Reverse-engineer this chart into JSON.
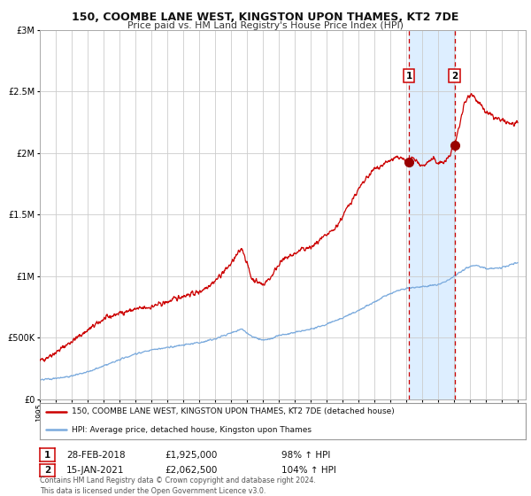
{
  "title": "150, COOMBE LANE WEST, KINGSTON UPON THAMES, KT2 7DE",
  "subtitle": "Price paid vs. HM Land Registry's House Price Index (HPI)",
  "legend_line1": "150, COOMBE LANE WEST, KINGSTON UPON THAMES, KT2 7DE (detached house)",
  "legend_line2": "HPI: Average price, detached house, Kingston upon Thames",
  "annotation1_label": "1",
  "annotation1_date": "28-FEB-2018",
  "annotation1_price": "£1,925,000",
  "annotation1_hpi": "98% ↑ HPI",
  "annotation2_label": "2",
  "annotation2_date": "15-JAN-2021",
  "annotation2_price": "£2,062,500",
  "annotation2_hpi": "104% ↑ HPI",
  "copyright": "Contains HM Land Registry data © Crown copyright and database right 2024.\nThis data is licensed under the Open Government Licence v3.0.",
  "red_line_color": "#cc0000",
  "blue_line_color": "#7aaadd",
  "dot_color": "#990000",
  "shading_color": "#ddeeff",
  "vline_color": "#cc0000",
  "grid_color": "#cccccc",
  "bg_color": "#ffffff",
  "year_start": 1995,
  "year_end": 2025,
  "ylim_max": 3000000,
  "sale1_year": 2018.17,
  "sale1_value": 1925000,
  "sale2_year": 2021.04,
  "sale2_value": 2062500,
  "red_anchors_x": [
    1995.0,
    1996.0,
    1997.0,
    1998.0,
    1999.0,
    2000.0,
    2001.0,
    2002.0,
    2003.0,
    2004.0,
    2005.0,
    2006.0,
    2007.0,
    2007.7,
    2008.3,
    2009.0,
    2009.5,
    2010.0,
    2010.5,
    2011.0,
    2011.5,
    2012.0,
    2012.5,
    2013.0,
    2013.5,
    2014.0,
    2014.5,
    2015.0,
    2015.5,
    2016.0,
    2016.5,
    2017.0,
    2017.5,
    2018.0,
    2018.17,
    2018.5,
    2019.0,
    2019.3,
    2019.7,
    2020.0,
    2020.5,
    2021.04,
    2021.3,
    2021.6,
    2021.9,
    2022.1,
    2022.4,
    2022.7,
    2023.0,
    2023.5,
    2024.0,
    2024.5,
    2025.0
  ],
  "red_anchors_y": [
    310000,
    380000,
    470000,
    560000,
    650000,
    700000,
    730000,
    750000,
    790000,
    840000,
    870000,
    960000,
    1100000,
    1230000,
    980000,
    930000,
    990000,
    1100000,
    1150000,
    1180000,
    1220000,
    1230000,
    1280000,
    1330000,
    1380000,
    1480000,
    1600000,
    1700000,
    1790000,
    1870000,
    1900000,
    1940000,
    1960000,
    1940000,
    1925000,
    1960000,
    1890000,
    1920000,
    1950000,
    1920000,
    1930000,
    2062500,
    2200000,
    2380000,
    2460000,
    2490000,
    2430000,
    2380000,
    2330000,
    2290000,
    2260000,
    2240000,
    2230000
  ],
  "blue_anchors_x": [
    1995.0,
    1996.0,
    1997.0,
    1998.0,
    1999.0,
    2000.0,
    2001.0,
    2002.0,
    2003.0,
    2004.0,
    2005.0,
    2006.0,
    2007.0,
    2007.7,
    2008.3,
    2009.0,
    2009.5,
    2010.0,
    2011.0,
    2012.0,
    2013.0,
    2014.0,
    2015.0,
    2016.0,
    2017.0,
    2017.5,
    2018.0,
    2018.5,
    2019.0,
    2019.5,
    2020.0,
    2020.5,
    2021.0,
    2021.5,
    2022.0,
    2022.5,
    2023.0,
    2023.5,
    2024.0,
    2024.5,
    2025.0
  ],
  "blue_anchors_y": [
    158000,
    170000,
    190000,
    220000,
    270000,
    320000,
    370000,
    400000,
    420000,
    440000,
    460000,
    490000,
    540000,
    570000,
    510000,
    480000,
    490000,
    520000,
    540000,
    570000,
    610000,
    660000,
    720000,
    790000,
    860000,
    880000,
    900000,
    910000,
    910000,
    920000,
    930000,
    960000,
    1000000,
    1040000,
    1080000,
    1090000,
    1060000,
    1060000,
    1070000,
    1090000,
    1110000
  ]
}
